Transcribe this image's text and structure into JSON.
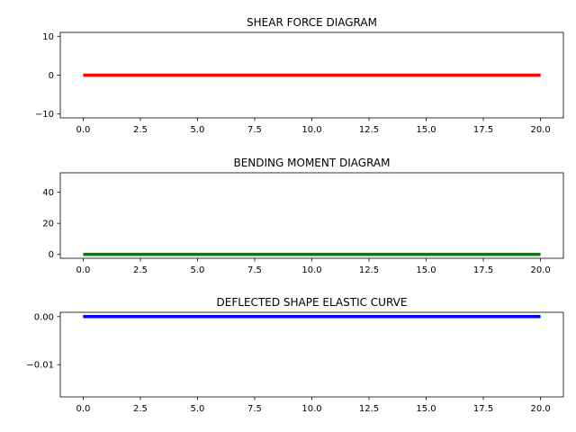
{
  "chart_data": [
    {
      "type": "line",
      "title": "SHEAR FORCE DIAGRAM",
      "xlabel": "",
      "ylabel": "",
      "xlim": [
        -1,
        21
      ],
      "ylim": [
        -11,
        11
      ],
      "xticks": [
        0.0,
        2.5,
        5.0,
        7.5,
        10.0,
        12.5,
        15.0,
        17.5,
        20.0
      ],
      "xtick_labels": [
        "0.0",
        "2.5",
        "5.0",
        "7.5",
        "10.0",
        "12.5",
        "15.0",
        "17.5",
        "20.0"
      ],
      "yticks": [
        -10,
        0,
        10
      ],
      "ytick_labels": [
        "−10",
        "0",
        "10"
      ],
      "grid": false,
      "series": [
        {
          "color": "#ff0000",
          "x": [
            0,
            20
          ],
          "y": [
            0,
            0
          ]
        }
      ]
    },
    {
      "type": "line",
      "title": "BENDING MOMENT DIAGRAM",
      "xlabel": "",
      "ylabel": "",
      "xlim": [
        -1,
        21
      ],
      "ylim": [
        -2.5,
        52.5
      ],
      "xticks": [
        0.0,
        2.5,
        5.0,
        7.5,
        10.0,
        12.5,
        15.0,
        17.5,
        20.0
      ],
      "xtick_labels": [
        "0.0",
        "2.5",
        "5.0",
        "7.5",
        "10.0",
        "12.5",
        "15.0",
        "17.5",
        "20.0"
      ],
      "yticks": [
        0,
        20,
        40
      ],
      "ytick_labels": [
        "0",
        "20",
        "40"
      ],
      "grid": false,
      "series": [
        {
          "color": "#008000",
          "x": [
            0,
            20
          ],
          "y": [
            0,
            0
          ]
        }
      ]
    },
    {
      "type": "line",
      "title": "DEFLECTED SHAPE ELASTIC CURVE",
      "xlabel": "",
      "ylabel": "",
      "xlim": [
        -1,
        21
      ],
      "ylim": [
        -0.0167,
        0.0009
      ],
      "xticks": [
        0.0,
        2.5,
        5.0,
        7.5,
        10.0,
        12.5,
        15.0,
        17.5,
        20.0
      ],
      "xtick_labels": [
        "0.0",
        "2.5",
        "5.0",
        "7.5",
        "10.0",
        "12.5",
        "15.0",
        "17.5",
        "20.0"
      ],
      "yticks": [
        0.0,
        -0.01
      ],
      "ytick_labels": [
        "0.00",
        "−0.01"
      ],
      "grid": false,
      "series": [
        {
          "color": "#0000ff",
          "x": [
            0,
            20
          ],
          "y": [
            0,
            0
          ]
        }
      ]
    }
  ]
}
